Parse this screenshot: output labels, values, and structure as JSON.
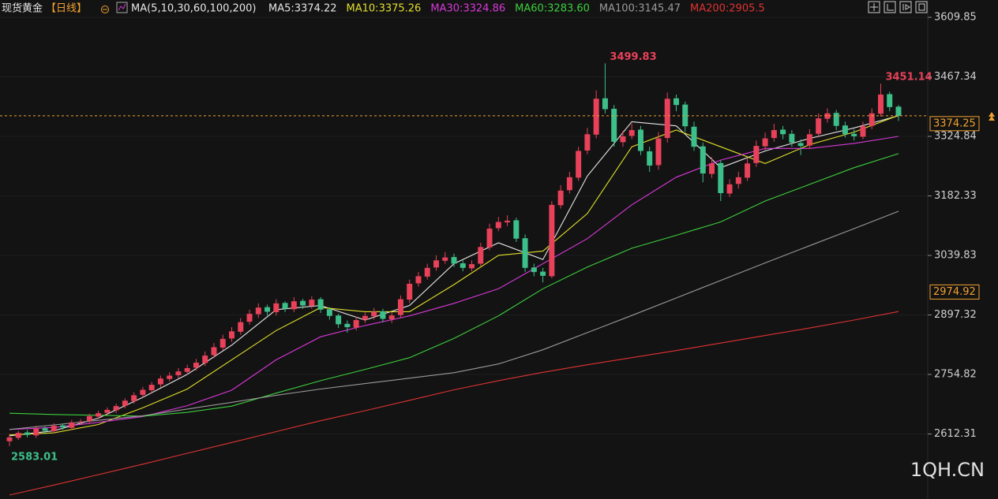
{
  "chart_data": {
    "type": "candlestick",
    "title": "现货黄金",
    "period": "【日线】",
    "indicator": "MA(5,10,30,60,100,200)",
    "watermark": "1QH.CN",
    "up_color": "#e8415a",
    "down_color": "#3dbf8a",
    "ylim": [
      2456.6,
      3651.4
    ],
    "yticks": [
      3609.85,
      3467.34,
      3324.84,
      3182.33,
      3039.83,
      2897.32,
      2754.82,
      2612.31
    ],
    "current_price": 3374.25,
    "marked_price": 2974.92,
    "open": [
      2595,
      2603,
      2616,
      2609,
      2626,
      2619,
      2633,
      2627,
      2641,
      2643,
      2654,
      2663,
      2669,
      2680,
      2691,
      2706,
      2717,
      2731,
      2744,
      2753,
      2761,
      2771,
      2782,
      2801,
      2819,
      2841,
      2857,
      2881,
      2899,
      2916,
      2904,
      2926,
      2911,
      2931,
      2919,
      2935,
      2911,
      2896,
      2876,
      2867,
      2886,
      2894,
      2906,
      2887,
      2897,
      2934,
      2973,
      2989,
      3011,
      3027,
      3036,
      3021,
      3009,
      3020,
      3059,
      3105,
      3119,
      3124,
      3081,
      3011,
      3001,
      2990,
      3160,
      3196,
      3226,
      3291,
      3329,
      3416,
      3391,
      3311,
      3326,
      3341,
      3289,
      3256,
      3321,
      3416,
      3401,
      3348,
      3301,
      3235,
      3261,
      3188,
      3211,
      3226,
      3261,
      3301,
      3321,
      3341,
      3331,
      3309,
      3303,
      3331,
      3367,
      3381,
      3351,
      3331,
      3324,
      3350,
      3379,
      3426,
      3396
    ],
    "high": [
      2612,
      2620,
      2622,
      2632,
      2630,
      2638,
      2637,
      2646,
      2648,
      2661,
      2668,
      2676,
      2685,
      2698,
      2712,
      2725,
      2737,
      2752,
      2760,
      2770,
      2778,
      2792,
      2810,
      2830,
      2850,
      2868,
      2890,
      2910,
      2925,
      2922,
      2935,
      2930,
      2940,
      2936,
      2942,
      2940,
      2916,
      2900,
      2884,
      2893,
      2903,
      2914,
      2912,
      2904,
      2944,
      2982,
      3000,
      3020,
      3040,
      3048,
      3044,
      3028,
      3028,
      3070,
      3116,
      3132,
      3136,
      3130,
      3090,
      3020,
      3010,
      3170,
      3208,
      3240,
      3300,
      3345,
      3435,
      3499.83,
      3400,
      3338,
      3355,
      3350,
      3300,
      3335,
      3430,
      3425,
      3408,
      3360,
      3310,
      3275,
      3268,
      3222,
      3240,
      3272,
      3315,
      3334,
      3355,
      3350,
      3340,
      3318,
      3342,
      3380,
      3392,
      3388,
      3360,
      3342,
      3360,
      3392,
      3451.14,
      3432,
      3400
    ],
    "low": [
      2583.01,
      2598,
      2604,
      2603,
      2612,
      2614,
      2622,
      2622,
      2634,
      2637,
      2648,
      2657,
      2662,
      2674,
      2685,
      2700,
      2710,
      2724,
      2738,
      2746,
      2754,
      2764,
      2775,
      2794,
      2812,
      2833,
      2850,
      2874,
      2890,
      2896,
      2896,
      2904,
      2904,
      2912,
      2912,
      2902,
      2886,
      2866,
      2855,
      2860,
      2878,
      2886,
      2880,
      2878,
      2890,
      2926,
      2965,
      2982,
      3003,
      3020,
      3012,
      3002,
      3002,
      3014,
      3052,
      3098,
      3110,
      3072,
      3000,
      2990,
      2975,
      2985,
      3152,
      3188,
      3218,
      3282,
      3320,
      3380,
      3300,
      3300,
      3318,
      3280,
      3240,
      3245,
      3310,
      3385,
      3335,
      3290,
      3215,
      3225,
      3170,
      3180,
      3200,
      3218,
      3252,
      3292,
      3312,
      3318,
      3300,
      3280,
      3295,
      3322,
      3358,
      3340,
      3322,
      3315,
      3318,
      3342,
      3372,
      3385,
      3362
    ],
    "close": [
      2604,
      2615,
      2610,
      2625,
      2620,
      2632,
      2628,
      2640,
      2642,
      2655,
      2662,
      2670,
      2679,
      2692,
      2705,
      2718,
      2730,
      2745,
      2752,
      2762,
      2770,
      2783,
      2800,
      2820,
      2840,
      2858,
      2880,
      2900,
      2915,
      2905,
      2925,
      2912,
      2930,
      2920,
      2934,
      2910,
      2895,
      2875,
      2868,
      2885,
      2895,
      2905,
      2888,
      2896,
      2935,
      2972,
      2990,
      3010,
      3028,
      3035,
      3020,
      3010,
      3019,
      3060,
      3104,
      3120,
      3123,
      3080,
      3010,
      3000,
      2991,
      3161,
      3195,
      3227,
      3290,
      3330,
      3415,
      3390,
      3312,
      3325,
      3340,
      3290,
      3255,
      3320,
      3415,
      3400,
      3349,
      3300,
      3236,
      3260,
      3189,
      3210,
      3227,
      3260,
      3302,
      3320,
      3340,
      3330,
      3310,
      3302,
      3330,
      3368,
      3380,
      3350,
      3330,
      3325,
      3349,
      3380,
      3425,
      3395,
      3374
    ],
    "series": [
      {
        "name": "MA5:3374.22",
        "color": "#e6e6e6",
        "values": [
          2608,
          2620,
          2650,
          2700,
          2755,
          2825,
          2910,
          2920,
          2885,
          2920,
          3020,
          3070,
          3030,
          3230,
          3360,
          3350,
          3250,
          3290,
          3320,
          3345,
          3374.22
        ]
      },
      {
        "name": "MA10:3375.26",
        "color": "#e2df2a",
        "values": [
          2610,
          2615,
          2635,
          2675,
          2720,
          2790,
          2860,
          2915,
          2905,
          2905,
          2970,
          3040,
          3050,
          3140,
          3300,
          3340,
          3300,
          3260,
          3305,
          3335,
          3375.26
        ]
      },
      {
        "name": "MA30:3324.86",
        "color": "#d838d8",
        "values": [
          2623,
          2628,
          2640,
          2654,
          2680,
          2717,
          2790,
          2845,
          2872,
          2895,
          2925,
          2960,
          3020,
          3080,
          3161,
          3227,
          3268,
          3296,
          3296,
          3308,
          3324.86
        ]
      },
      {
        "name": "MA60:3283.60",
        "color": "#3ccf3c",
        "values": [
          2662,
          2659,
          2657,
          2655,
          2664,
          2679,
          2710,
          2740,
          2767,
          2795,
          2841,
          2895,
          2960,
          3012,
          3057,
          3088,
          3120,
          3170,
          3210,
          3250,
          3283.6
        ]
      },
      {
        "name": "MA100:3145.47",
        "color": "#9a9a9a",
        "values": [
          2623,
          2634,
          2645,
          2656,
          2672,
          2688,
          2705,
          2720,
          2733,
          2746,
          2759,
          2780,
          2814,
          2855,
          2896,
          2938,
          2980,
          3022,
          3063,
          3104,
          3145.47
        ]
      },
      {
        "name": "MA200:2905.5",
        "color": "#e03232",
        "values": [
          2466,
          2490,
          2515,
          2540,
          2566,
          2592,
          2618,
          2644,
          2668,
          2693,
          2718,
          2740,
          2760,
          2778,
          2795,
          2812,
          2830,
          2848,
          2866,
          2885,
          2905.5
        ]
      }
    ]
  }
}
